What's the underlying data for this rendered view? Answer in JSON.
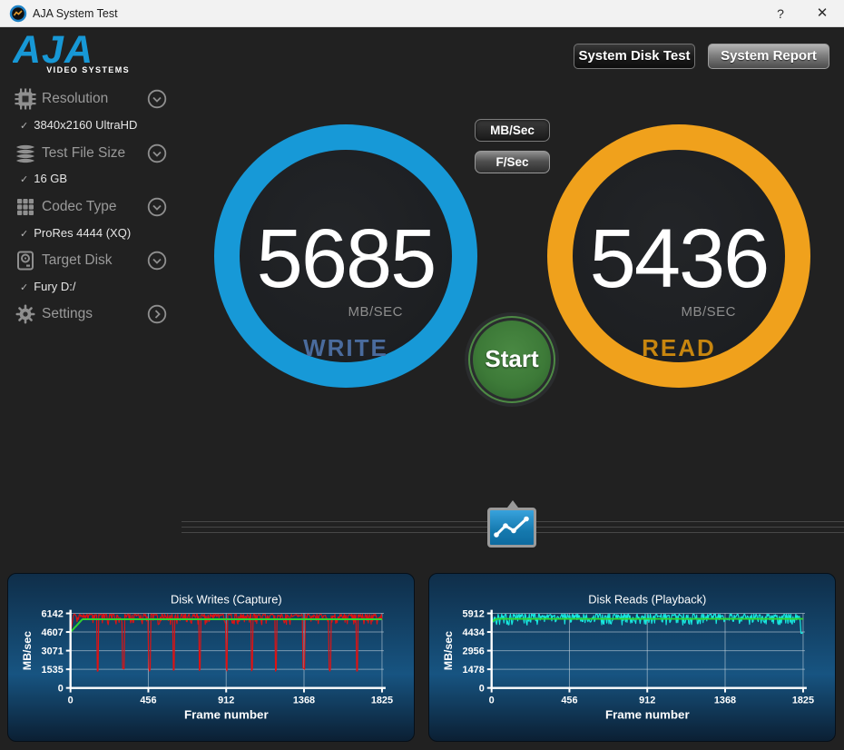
{
  "titlebar": {
    "title": "AJA System Test",
    "help_glyph": "?",
    "close_glyph": "✕"
  },
  "header": {
    "logo_text": "AJA",
    "logo_subtext": "VIDEO SYSTEMS",
    "buttons": [
      {
        "label": "System Disk Test",
        "state": "active"
      },
      {
        "label": "System Report",
        "state": "raised"
      }
    ]
  },
  "sidebar": {
    "check_glyph": "✓",
    "items": [
      {
        "label": "Resolution",
        "icon": "chip-icon",
        "chevron": "down",
        "value": "3840x2160 UltraHD"
      },
      {
        "label": "Test File Size",
        "icon": "layers-icon",
        "chevron": "down",
        "value": "16 GB"
      },
      {
        "label": "Codec Type",
        "icon": "grid-icon",
        "chevron": "down",
        "value": "ProRes 4444 (XQ)"
      },
      {
        "label": "Target Disk",
        "icon": "disk-icon",
        "chevron": "down",
        "value": "Fury D:/"
      },
      {
        "label": "Settings",
        "icon": "gear-icon",
        "chevron": "right",
        "value": null
      }
    ]
  },
  "unit_toggle": {
    "options": [
      {
        "label": "MB/Sec",
        "selected": true
      },
      {
        "label": "F/Sec",
        "selected": false
      }
    ]
  },
  "gauges": {
    "write": {
      "value": "5685",
      "unit": "MB/SEC",
      "label": "WRITE",
      "ring_color": "#1799d7",
      "label_color": "#4a6b9d"
    },
    "read": {
      "value": "5436",
      "unit": "MB/SEC",
      "label": "READ",
      "ring_color": "#f0a11c",
      "label_color": "#c8860f"
    }
  },
  "start_button": {
    "label": "Start",
    "color": "#3d7a38"
  },
  "chart_data": [
    {
      "type": "line",
      "title": "Disk Writes (Capture)",
      "xlabel": "Frame number",
      "ylabel": "MB/sec",
      "xlim": [
        0,
        1825
      ],
      "ylim": [
        0,
        6142
      ],
      "x_ticks": [
        0,
        456,
        912,
        1368,
        1825
      ],
      "y_ticks": [
        0,
        1535,
        3071,
        4607,
        6142
      ],
      "grid": true,
      "series": [
        {
          "name": "write-rate-per-frame",
          "kind": "noisy",
          "color": "#e01212",
          "width": 1.2,
          "top": 6070,
          "jitter": 870,
          "sharpness": 2.6,
          "ramp": {
            "from": 4500,
            "until": 18
          },
          "dips": {
            "frames": [
              158,
              310,
              463,
              605,
              757,
              915,
              1062,
              1204,
              1367,
              1520,
              1678
            ],
            "min": 1380,
            "width": 5
          }
        },
        {
          "name": "write-rate-average",
          "kind": "average",
          "color": "#2fd52f",
          "width": 2,
          "value": 5660,
          "ramp": {
            "from": 4600,
            "until": 70
          }
        }
      ]
    },
    {
      "type": "line",
      "title": "Disk Reads (Playback)",
      "xlabel": "Frame number",
      "ylabel": "MB/sec",
      "xlim": [
        0,
        1825
      ],
      "ylim": [
        0,
        5912
      ],
      "x_ticks": [
        0,
        456,
        912,
        1368,
        1825
      ],
      "y_ticks": [
        0,
        1478,
        2956,
        4434,
        5912
      ],
      "grid": true,
      "series": [
        {
          "name": "read-rate-per-frame",
          "kind": "noisy",
          "color": "#17e8e0",
          "width": 1.2,
          "top": 5860,
          "jitter": 880,
          "sharpness": 1.7,
          "ramp": {
            "from": 5400,
            "until": 6
          },
          "end_dip": {
            "frame": 1812,
            "min": 4320
          }
        },
        {
          "name": "read-rate-average",
          "kind": "average",
          "color": "#2fd52f",
          "width": 2,
          "value": 5480,
          "ramp": {
            "from": 5250,
            "until": 30
          }
        }
      ]
    }
  ]
}
